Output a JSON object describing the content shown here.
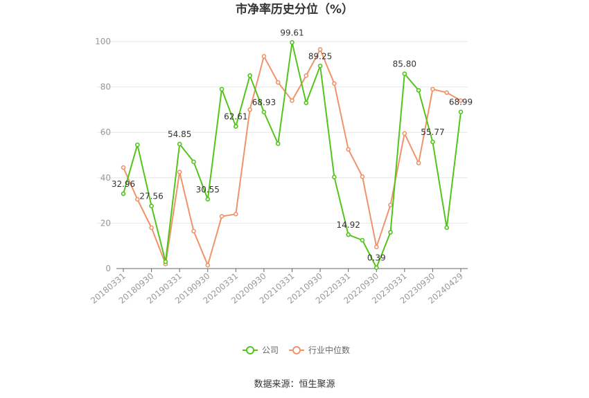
{
  "chart_data": {
    "type": "line",
    "title": "市净率历史分位（%）",
    "source": "数据来源：恒生聚源",
    "ylim": [
      0,
      100
    ],
    "yticks": [
      "0",
      "20",
      "40",
      "60",
      "80",
      "100"
    ],
    "grid": true,
    "legend_position": "bottom",
    "x": [
      "20180331",
      "20180630",
      "20180930",
      "20181231",
      "20190331",
      "20190630",
      "20190930",
      "20191231",
      "20200331",
      "20200630",
      "20200930",
      "20201231",
      "20210331",
      "20210630",
      "20210930",
      "20211231",
      "20220331",
      "20220630",
      "20220930",
      "20221231",
      "20230331",
      "20230630",
      "20230930",
      "20231231",
      "20240429"
    ],
    "x_tick_labels": [
      "20180331",
      "20180930",
      "20190331",
      "20190930",
      "20200331",
      "20200930",
      "20210331",
      "20210930",
      "20220331",
      "20220930",
      "20230331",
      "20230930",
      "20240429"
    ],
    "series": [
      {
        "name": "公司",
        "color": "#52c41a",
        "values": [
          32.96,
          54.5,
          27.56,
          3.0,
          54.85,
          47.0,
          30.55,
          79.0,
          62.61,
          85.0,
          68.93,
          55.0,
          99.61,
          73.0,
          89.25,
          40.3,
          14.92,
          12.5,
          0.39,
          16.0,
          85.8,
          78.5,
          55.77,
          18.0,
          68.99
        ],
        "labels": [
          "32.96",
          "",
          "27.56",
          "",
          "54.85",
          "",
          "30.55",
          "",
          "62.61",
          "",
          "68.93",
          "",
          "99.61",
          "",
          "89.25",
          "",
          "14.92",
          "",
          "0.39",
          "",
          "85.80",
          "",
          "55.77",
          "",
          "68.99"
        ]
      },
      {
        "name": "行业中位数",
        "color": "#f0936a",
        "values": [
          44.5,
          30.5,
          18.0,
          2.0,
          42.5,
          16.5,
          1.5,
          23.0,
          24.0,
          70.0,
          93.5,
          82.0,
          74.0,
          85.0,
          96.5,
          81.5,
          52.5,
          40.5,
          9.5,
          28.0,
          59.5,
          46.5,
          79.0,
          77.5,
          74.0
        ]
      }
    ]
  }
}
